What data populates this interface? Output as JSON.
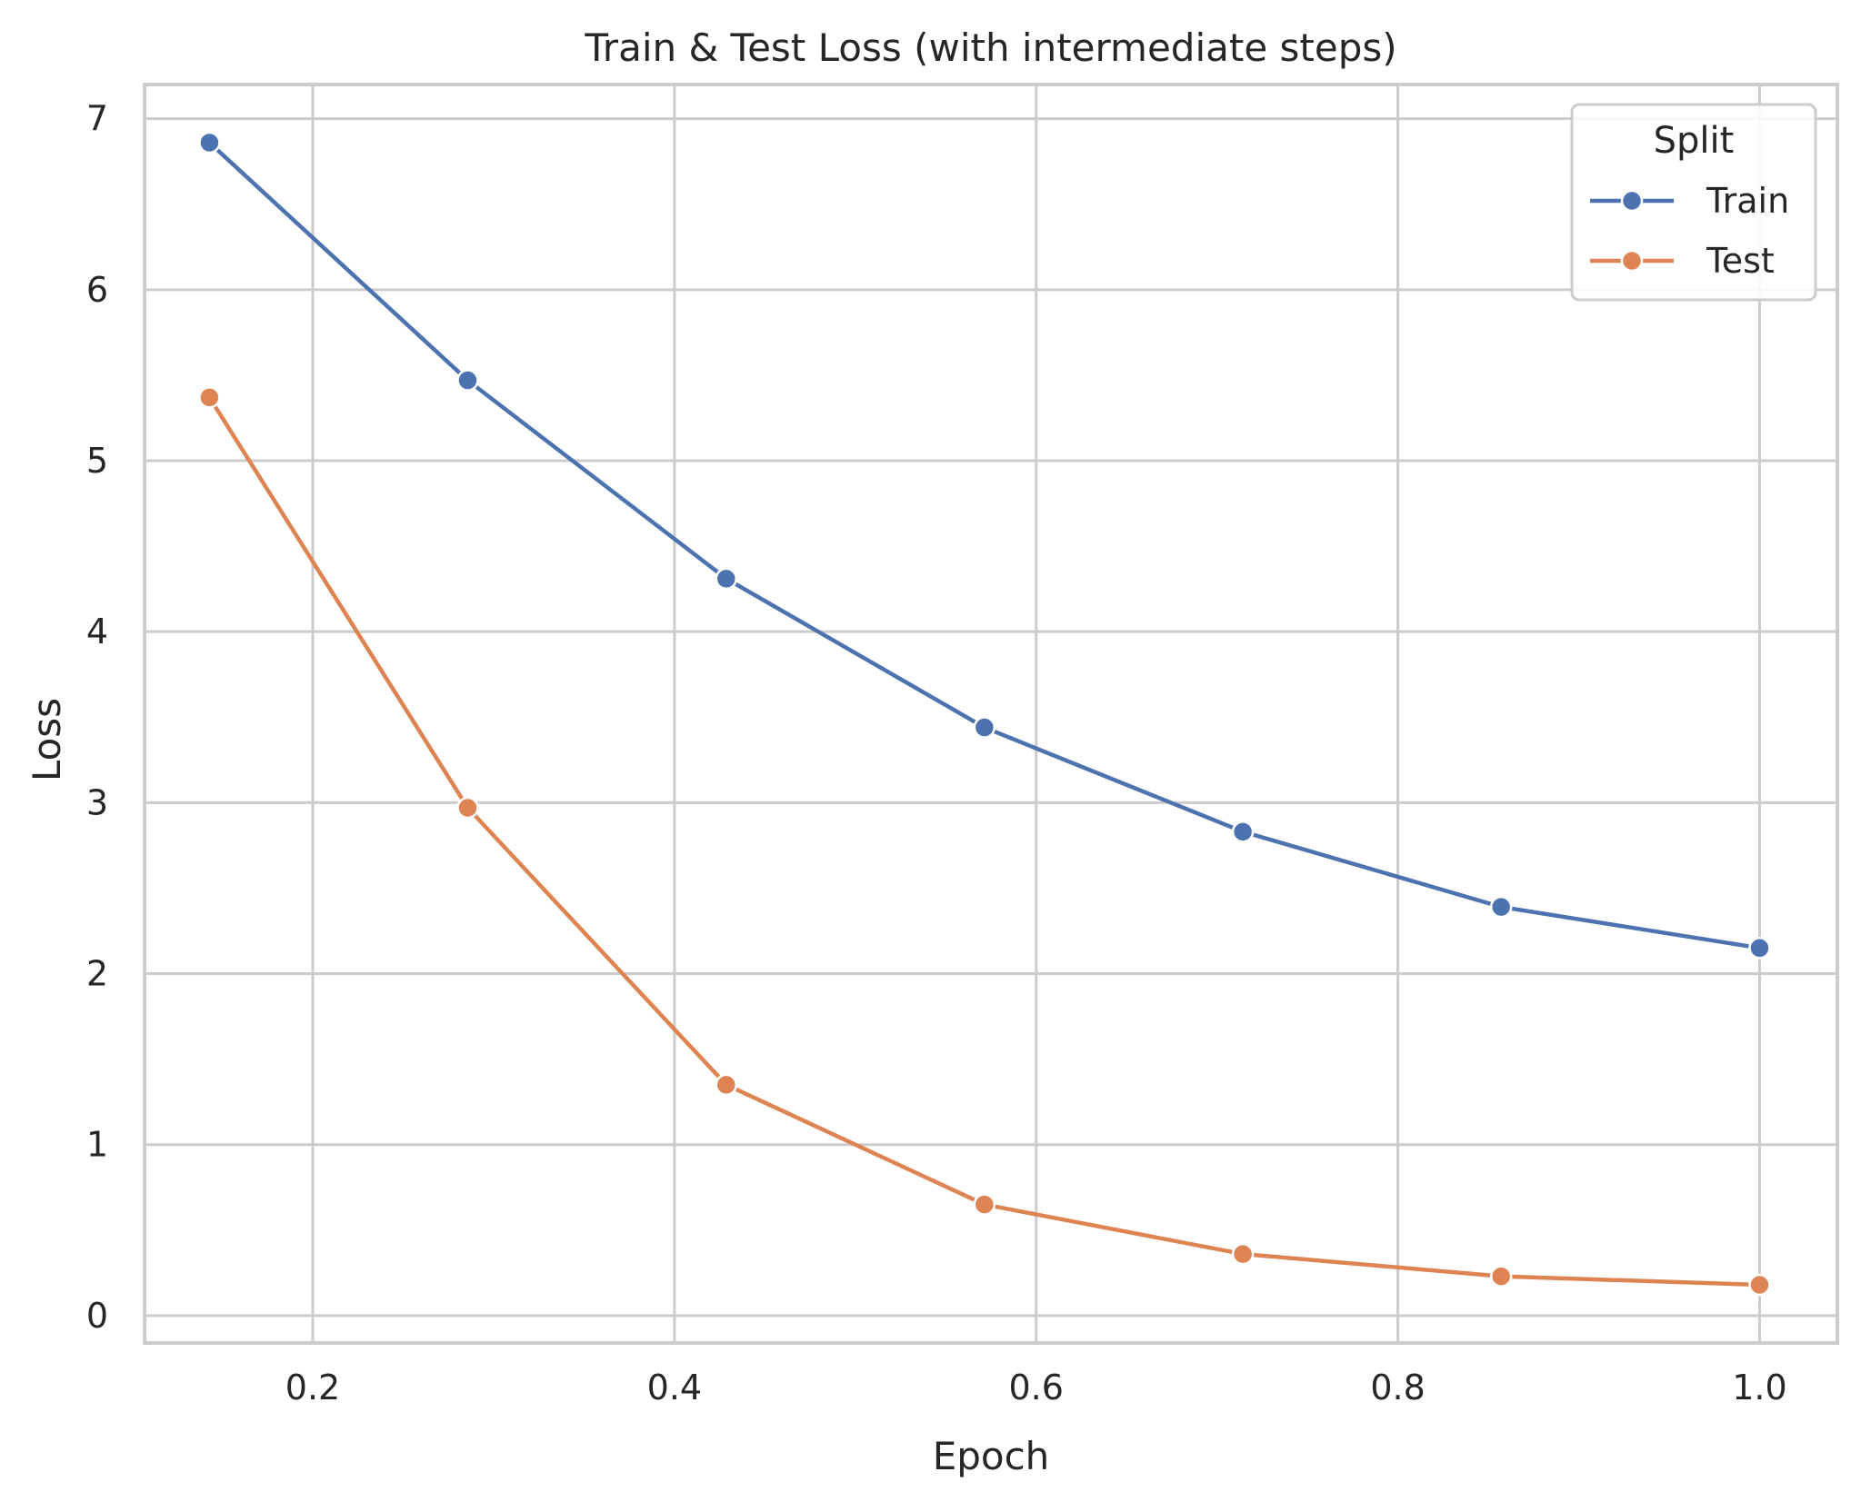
{
  "chart_data": {
    "type": "line",
    "title": "Train & Test Loss (with intermediate steps)",
    "xlabel": "Epoch",
    "ylabel": "Loss",
    "xlim": [
      0.107,
      1.043
    ],
    "ylim": [
      -0.16,
      7.2
    ],
    "xticks": [
      0.2,
      0.4,
      0.6,
      0.8,
      1.0
    ],
    "xtick_labels": [
      "0.2",
      "0.4",
      "0.6",
      "0.8",
      "1.0"
    ],
    "yticks": [
      0,
      1,
      2,
      3,
      4,
      5,
      6,
      7
    ],
    "ytick_labels": [
      "0",
      "1",
      "2",
      "3",
      "4",
      "5",
      "6",
      "7"
    ],
    "grid": true,
    "legend": {
      "title": "Split",
      "position": "top-right"
    },
    "x": [
      0.1429,
      0.2857,
      0.4286,
      0.5714,
      0.7143,
      0.8571,
      1.0
    ],
    "series": [
      {
        "name": "Train",
        "color": "#4c72b0",
        "values": [
          6.86,
          5.47,
          4.31,
          3.44,
          2.83,
          2.39,
          2.15
        ]
      },
      {
        "name": "Test",
        "color": "#dd8452",
        "values": [
          5.37,
          2.97,
          1.35,
          0.65,
          0.36,
          0.23,
          0.18
        ]
      }
    ]
  }
}
